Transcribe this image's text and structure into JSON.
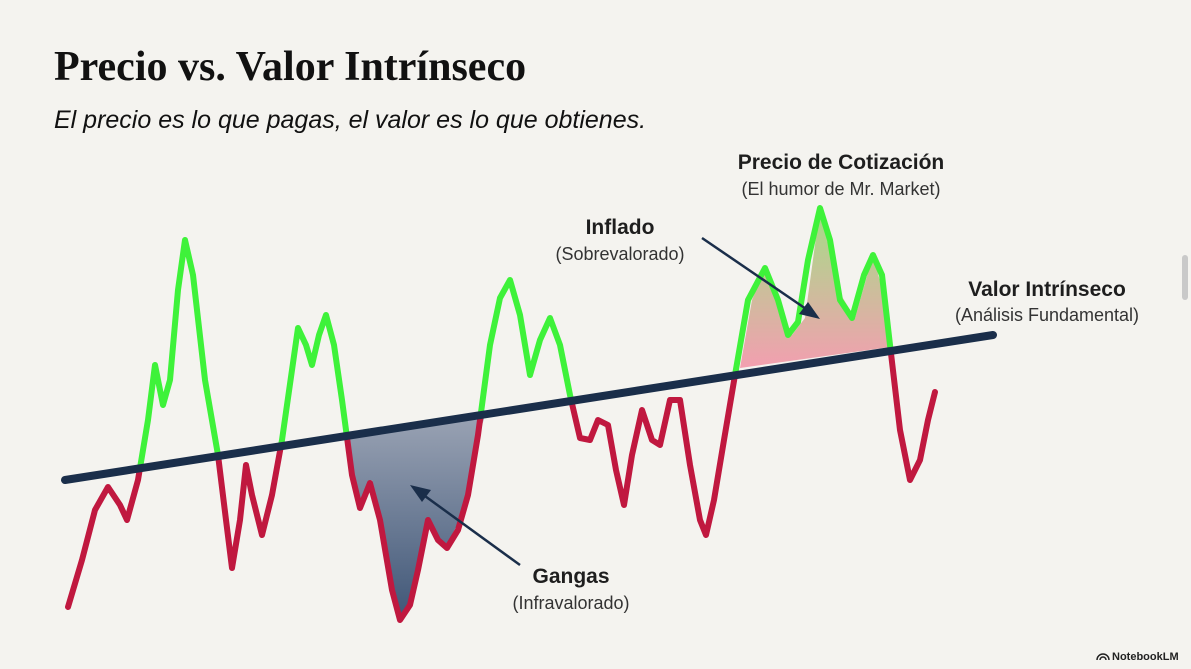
{
  "header": {
    "title": "Precio vs. Valor Intrínseco",
    "subtitle": "El precio es lo que pagas, el valor es lo que obtienes."
  },
  "labels": {
    "market_price": {
      "title": "Precio de Cotización",
      "note": "(El humor de Mr. Market)"
    },
    "inflated": {
      "title": "Inflado",
      "note": "(Sobrevalorado)"
    },
    "intrinsic_value": {
      "title": "Valor Intrínseco",
      "note": "(Análisis Fundamental)"
    },
    "bargains": {
      "title": "Gangas",
      "note": "(Infravalorado)"
    }
  },
  "footer": {
    "brand": "NotebookLM"
  }
}
